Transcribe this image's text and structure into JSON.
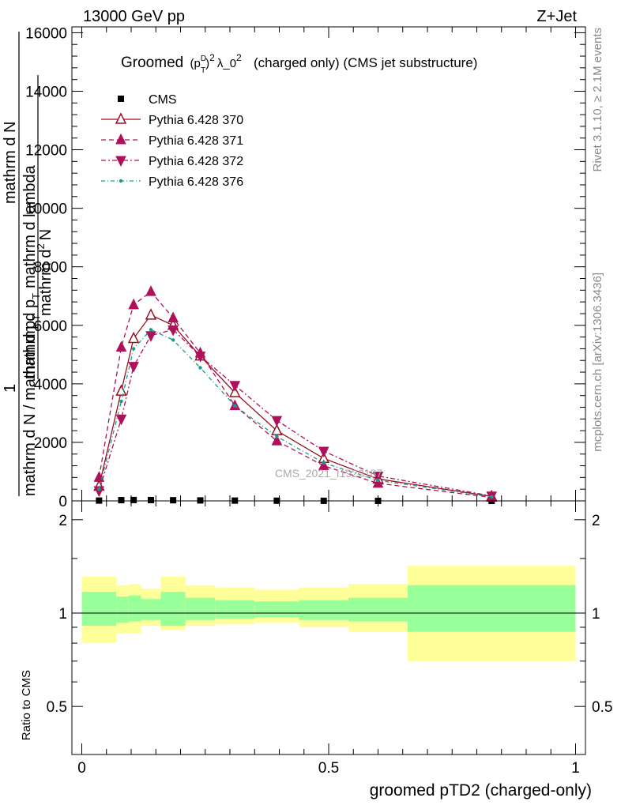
{
  "header": {
    "left": "13000 GeV pp",
    "right": "Z+Jet"
  },
  "title": {
    "main": "Groomed",
    "expr_p": "(p",
    "expr_sup_d": "D",
    "expr_sub_t": "T",
    "expr_close": ")",
    "expr_sup_2": "2",
    "expr_lambda": "λ_0",
    "expr_sup_2b": "2",
    "suffix": "(charged only) (CMS jet substructure)"
  },
  "side_labels": {
    "rivet": "Rivet 3.1.10, ≥ 2.1M events",
    "mcplots": "mcplots.cern.ch [arXiv:1306.3436]"
  },
  "watermark": "CMS_2021_I1920187",
  "y_label": {
    "numerator_1": "1",
    "line_a": "mathrm d N",
    "line_b": "mathrm d N / mathrm d p",
    "line_b_sub": "T",
    "line_c": "mathrm d p",
    "line_c_sub": "T",
    "line_c_tail": "mathrm d lambda",
    "line_d": "mathrm d",
    "line_d_sup": "2",
    "line_d_tail": "N"
  },
  "ratio_ylabel": "Ratio to CMS",
  "x_label": "groomed pTD2 (charged-only)",
  "colors": {
    "cms": "#000000",
    "p370": "#9a0f1f",
    "p371": "#b0105a",
    "p372": "#b0105a",
    "p376": "#1a9a8a",
    "band_yellow": "#ffff99",
    "band_green": "#99ff99"
  },
  "chart_data": [
    {
      "type": "line",
      "panel": "main",
      "xlim": [
        -0.02,
        1.02
      ],
      "ylim": [
        0,
        16200
      ],
      "y_ticks": [
        0,
        2000,
        4000,
        6000,
        8000,
        10000,
        12000,
        14000,
        16000
      ],
      "y_tick_labels": [
        "0",
        "2000",
        "4000",
        "6000",
        "8000",
        "10000",
        "12000",
        "14000",
        "16000"
      ],
      "legend_position": "top-left",
      "series": [
        {
          "name": "CMS",
          "marker": "square",
          "x": [
            0.035,
            0.08,
            0.105,
            0.14,
            0.185,
            0.24,
            0.31,
            0.395,
            0.49,
            0.6,
            0.83
          ],
          "y": [
            10,
            25,
            30,
            28,
            22,
            16,
            10,
            6,
            3,
            1,
            0.2
          ]
        },
        {
          "name": "Pythia 6.428 370",
          "marker": "triangle-up-open",
          "line": "solid",
          "x": [
            0.035,
            0.08,
            0.105,
            0.14,
            0.185,
            0.24,
            0.31,
            0.395,
            0.49,
            0.6,
            0.83
          ],
          "y": [
            500,
            3750,
            5550,
            6350,
            6000,
            4950,
            3700,
            2400,
            1450,
            750,
            150
          ]
        },
        {
          "name": "Pythia 6.428 371",
          "marker": "triangle-up",
          "line": "dashed",
          "x": [
            0.035,
            0.08,
            0.105,
            0.14,
            0.185,
            0.24,
            0.31,
            0.395,
            0.49,
            0.6,
            0.83
          ],
          "y": [
            800,
            5250,
            6700,
            7150,
            6250,
            5050,
            3250,
            2050,
            1200,
            600,
            120
          ]
        },
        {
          "name": "Pythia 6.428 372",
          "marker": "triangle-down",
          "line": "dash-dot",
          "x": [
            0.035,
            0.08,
            0.105,
            0.14,
            0.185,
            0.24,
            0.31,
            0.395,
            0.49,
            0.6,
            0.83
          ],
          "y": [
            350,
            2800,
            4600,
            5650,
            5850,
            4950,
            3950,
            2750,
            1700,
            850,
            170
          ]
        },
        {
          "name": "Pythia 6.428 376",
          "marker": "dot",
          "line": "dash-dot",
          "x": [
            0.035,
            0.08,
            0.105,
            0.14,
            0.185,
            0.24,
            0.31,
            0.395,
            0.49,
            0.6,
            0.83
          ],
          "y": [
            400,
            3400,
            5200,
            5850,
            5500,
            4550,
            3250,
            2200,
            1300,
            700,
            140
          ]
        }
      ]
    },
    {
      "type": "area",
      "panel": "ratio",
      "ylabel": "Ratio to CMS",
      "xlabel": "groomed pTD2 (charged-only)",
      "xlim": [
        -0.02,
        1.02
      ],
      "ylim": [
        0.35,
        2.3
      ],
      "x_ticks": [
        0,
        0.5,
        1
      ],
      "x_tick_labels": [
        "0",
        "0.5",
        "1"
      ],
      "y_ticks": [
        0.5,
        1,
        2
      ],
      "y_tick_labels": [
        "0.5",
        "1",
        "2"
      ],
      "reference": 1,
      "bins": [
        {
          "x0": 0.0,
          "x1": 0.07,
          "yellow": [
            0.8,
            1.31
          ],
          "green": [
            0.91,
            1.17
          ]
        },
        {
          "x0": 0.07,
          "x1": 0.095,
          "yellow": [
            0.86,
            1.23
          ],
          "green": [
            0.93,
            1.13
          ]
        },
        {
          "x0": 0.095,
          "x1": 0.12,
          "yellow": [
            0.86,
            1.24
          ],
          "green": [
            0.94,
            1.14
          ]
        },
        {
          "x0": 0.12,
          "x1": 0.16,
          "yellow": [
            0.91,
            1.2
          ],
          "green": [
            0.95,
            1.11
          ]
        },
        {
          "x0": 0.16,
          "x1": 0.21,
          "yellow": [
            0.88,
            1.31
          ],
          "green": [
            0.91,
            1.17
          ]
        },
        {
          "x0": 0.21,
          "x1": 0.27,
          "yellow": [
            0.91,
            1.23
          ],
          "green": [
            0.95,
            1.12
          ]
        },
        {
          "x0": 0.27,
          "x1": 0.35,
          "yellow": [
            0.92,
            1.21
          ],
          "green": [
            0.96,
            1.1
          ]
        },
        {
          "x0": 0.35,
          "x1": 0.44,
          "yellow": [
            0.93,
            1.19
          ],
          "green": [
            0.97,
            1.09
          ]
        },
        {
          "x0": 0.44,
          "x1": 0.54,
          "yellow": [
            0.9,
            1.21
          ],
          "green": [
            0.95,
            1.1
          ]
        },
        {
          "x0": 0.54,
          "x1": 0.66,
          "yellow": [
            0.87,
            1.24
          ],
          "green": [
            0.94,
            1.12
          ]
        },
        {
          "x0": 0.66,
          "x1": 1.0,
          "yellow": [
            0.7,
            1.42
          ],
          "green": [
            0.87,
            1.23
          ]
        }
      ]
    }
  ]
}
